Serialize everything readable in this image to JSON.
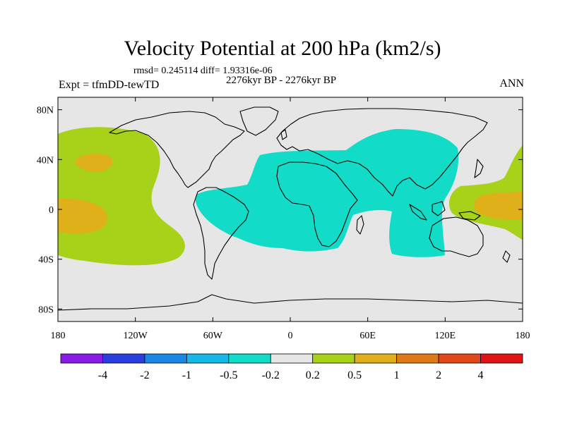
{
  "title": "Velocity Potential at 200 hPa (km2/s)",
  "stats": "rmsd= 0.245114 diff= 1.93316e-06",
  "period": "2276kyr BP - 2276kyr BP",
  "experiment": "Expt = tfmDD-tewTD",
  "season": "ANN",
  "map": {
    "projection": "cylindrical-equidistant",
    "lon_range": [
      -180,
      180
    ],
    "lat_range": [
      -90,
      90
    ],
    "lat_ticks": [
      {
        "value": 80,
        "label": "80N"
      },
      {
        "value": 40,
        "label": "40N"
      },
      {
        "value": 0,
        "label": "0"
      },
      {
        "value": -40,
        "label": "40S"
      },
      {
        "value": -80,
        "label": "80S"
      }
    ],
    "lon_ticks": [
      {
        "value": -180,
        "label": "180"
      },
      {
        "value": -120,
        "label": "120W"
      },
      {
        "value": -60,
        "label": "60W"
      },
      {
        "value": 0,
        "label": "0"
      },
      {
        "value": 60,
        "label": "60E"
      },
      {
        "value": 120,
        "label": "120E"
      },
      {
        "value": 180,
        "label": "180"
      }
    ],
    "background_color": "#e6e6e6",
    "coastline_color": "#000000"
  },
  "colorbar": {
    "levels": [
      "-4",
      "-2",
      "-1",
      "-0.5",
      "-0.2",
      "0.2",
      "0.5",
      "1",
      "2",
      "4"
    ],
    "colors": [
      "#8a1be6",
      "#2b3fe0",
      "#1a86e6",
      "#16b8e8",
      "#12dcc8",
      "#e6e6e6",
      "#a8d21a",
      "#e0b01a",
      "#e07a18",
      "#e0481a",
      "#e01414"
    ]
  }
}
